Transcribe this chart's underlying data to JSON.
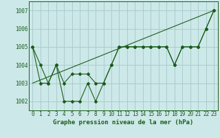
{
  "title": "Graphe pression niveau de la mer (hPa)",
  "bg_color": "#cce8e8",
  "grid_color": "#aacccc",
  "line_color": "#1a5c1a",
  "x_min": -0.5,
  "x_max": 23.5,
  "y_min": 1001.5,
  "y_max": 1007.5,
  "y_ticks": [
    1002,
    1003,
    1004,
    1005,
    1006,
    1007
  ],
  "x_ticks": [
    0,
    1,
    2,
    3,
    4,
    5,
    6,
    7,
    8,
    9,
    10,
    11,
    12,
    13,
    14,
    15,
    16,
    17,
    18,
    19,
    20,
    21,
    22,
    23
  ],
  "series1": [
    [
      0,
      1005.0
    ],
    [
      1,
      1004.0
    ],
    [
      2,
      1003.0
    ],
    [
      3,
      1004.0
    ],
    [
      4,
      1002.0
    ],
    [
      5,
      1002.0
    ],
    [
      6,
      1002.0
    ],
    [
      7,
      1003.0
    ],
    [
      8,
      1002.0
    ],
    [
      9,
      1003.0
    ],
    [
      10,
      1004.0
    ],
    [
      11,
      1005.0
    ],
    [
      12,
      1005.0
    ],
    [
      13,
      1005.0
    ],
    [
      14,
      1005.0
    ],
    [
      15,
      1005.0
    ],
    [
      16,
      1005.0
    ],
    [
      17,
      1005.0
    ],
    [
      18,
      1004.0
    ],
    [
      19,
      1005.0
    ],
    [
      20,
      1005.0
    ],
    [
      21,
      1005.0
    ],
    [
      22,
      1006.0
    ],
    [
      23,
      1007.0
    ]
  ],
  "series2": [
    [
      0,
      1005.0
    ],
    [
      1,
      1003.0
    ],
    [
      2,
      1003.0
    ],
    [
      3,
      1004.0
    ],
    [
      4,
      1003.0
    ],
    [
      5,
      1003.5
    ],
    [
      6,
      1003.5
    ],
    [
      7,
      1003.5
    ],
    [
      8,
      1003.0
    ],
    [
      9,
      1003.0
    ],
    [
      10,
      1004.0
    ],
    [
      11,
      1005.0
    ],
    [
      12,
      1005.0
    ],
    [
      13,
      1005.0
    ],
    [
      14,
      1005.0
    ],
    [
      15,
      1005.0
    ],
    [
      16,
      1005.0
    ],
    [
      17,
      1005.0
    ],
    [
      18,
      1004.0
    ],
    [
      19,
      1005.0
    ],
    [
      20,
      1005.0
    ],
    [
      21,
      1005.0
    ],
    [
      22,
      1006.0
    ],
    [
      23,
      1007.0
    ]
  ],
  "trend_line": [
    [
      0,
      1003.0
    ],
    [
      23,
      1007.0
    ]
  ],
  "title_fontsize": 6.5,
  "tick_fontsize": 5.5
}
